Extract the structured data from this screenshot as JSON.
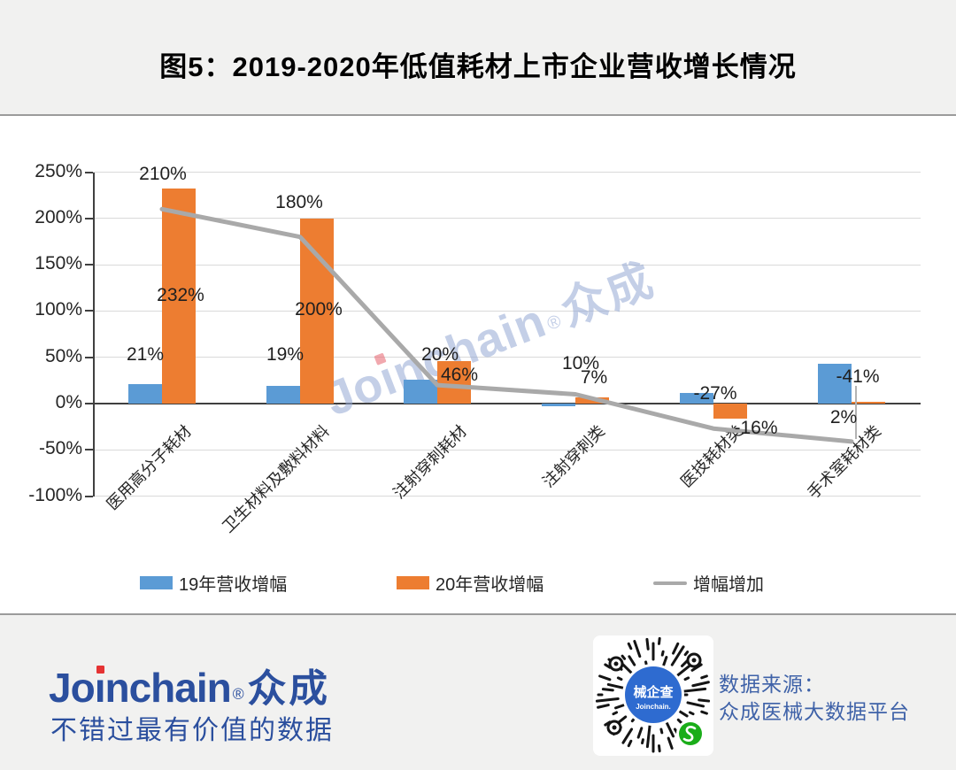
{
  "title": "图5：2019-2020年低值耗材上市企业营收增长情况",
  "watermark": "Joinchain®众成",
  "chart_data": {
    "type": "bar+line",
    "categories": [
      "医用高分子耗材",
      "卫生材料及敷料材料",
      "注射穿刺耗材",
      "注射穿刺类",
      "医技耗材类",
      "手术室耗材类"
    ],
    "series": [
      {
        "name": "19年营收增幅",
        "chart_type": "bar",
        "color": "#5b9bd5",
        "values": [
          21,
          19,
          26,
          -3,
          11,
          43
        ],
        "visible_labels": [
          "21%",
          "19%",
          null,
          null,
          null,
          null
        ]
      },
      {
        "name": "20年营收增幅",
        "chart_type": "bar",
        "color": "#ed7d31",
        "values": [
          232,
          200,
          46,
          7,
          -16,
          2
        ],
        "visible_labels": [
          "232%",
          "200%",
          "46%",
          "7%",
          "-16%",
          "2%"
        ]
      },
      {
        "name": "增幅增加",
        "chart_type": "line",
        "color": "#a9a9a9",
        "values": [
          210,
          180,
          20,
          10,
          -27,
          -41
        ],
        "visible_labels": [
          "210%",
          "180%",
          "20%",
          "10%",
          "-27%",
          "-41%"
        ]
      }
    ],
    "y_axis": {
      "ticks": [
        "250%",
        "200%",
        "150%",
        "100%",
        "50%",
        "0%",
        "-50%",
        "-100%"
      ],
      "min": -100,
      "max": 250,
      "grid": true
    },
    "legend": {
      "position": "bottom",
      "entries": [
        "19年营收增幅",
        "20年营收增幅",
        "增幅增加"
      ]
    }
  },
  "footer": {
    "logo": "Joinchain®众成",
    "tagline": "不错过最有价值的数据",
    "qr_center_title": "械企查",
    "qr_center_subtitle": "Joinchain.",
    "source_label": "数据来源：",
    "source_value": "众成医械大数据平台"
  },
  "colors": {
    "bar_2019": "#5b9bd5",
    "bar_2020": "#ed7d31",
    "line": "#a9a9a9",
    "brand_blue": "#2b4f9e",
    "wechat_green": "#1aad19",
    "logo_dot_red": "#e53333"
  }
}
